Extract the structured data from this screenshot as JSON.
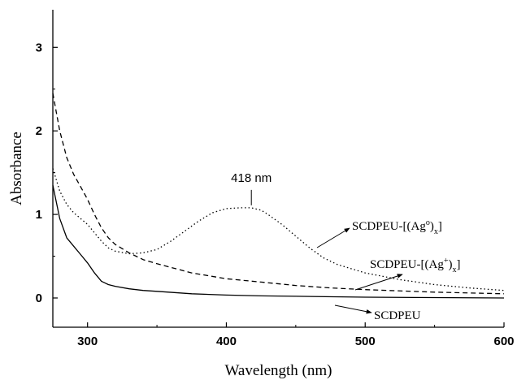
{
  "chart_data": {
    "type": "line",
    "title": "",
    "xlabel": "Wavelength (nm)",
    "ylabel": "Absorbance",
    "xlim": [
      275,
      600
    ],
    "ylim": [
      -0.35,
      3.45
    ],
    "xticks": [
      300,
      400,
      500,
      600
    ],
    "yticks": [
      0,
      1,
      2,
      3
    ],
    "grid": false,
    "legend": "none",
    "series": [
      {
        "name": "SCDPEU",
        "style": "solid",
        "x": [
          275,
          280,
          285,
          290,
          295,
          300,
          305,
          310,
          315,
          320,
          330,
          340,
          350,
          375,
          400,
          425,
          450,
          500,
          550,
          600
        ],
        "y": [
          1.35,
          0.95,
          0.72,
          0.62,
          0.52,
          0.42,
          0.3,
          0.2,
          0.16,
          0.14,
          0.11,
          0.09,
          0.08,
          0.05,
          0.035,
          0.025,
          0.02,
          0.01,
          0.005,
          0.0
        ]
      },
      {
        "name": "SCDPEU-[(Ag+)x]",
        "label_parts": [
          "SCDPEU-[(Ag",
          "+",
          ")",
          "x",
          "]"
        ],
        "style": "dashed",
        "x": [
          275,
          280,
          285,
          290,
          295,
          300,
          305,
          310,
          315,
          320,
          330,
          340,
          350,
          375,
          400,
          425,
          450,
          475,
          500,
          550,
          600
        ],
        "y": [
          2.45,
          2.0,
          1.68,
          1.48,
          1.33,
          1.18,
          1.0,
          0.84,
          0.72,
          0.64,
          0.54,
          0.46,
          0.41,
          0.3,
          0.23,
          0.19,
          0.15,
          0.12,
          0.1,
          0.07,
          0.05
        ]
      },
      {
        "name": "SCDPEU-[(Ago)x]",
        "label_parts": [
          "SCDPEU-[(Ag",
          "o",
          ")",
          "x",
          "]"
        ],
        "style": "dotted",
        "x": [
          275,
          280,
          285,
          290,
          295,
          300,
          305,
          310,
          315,
          320,
          330,
          340,
          350,
          360,
          370,
          380,
          390,
          400,
          410,
          418,
          425,
          430,
          440,
          450,
          460,
          470,
          480,
          500,
          525,
          550,
          575,
          600
        ],
        "y": [
          1.55,
          1.28,
          1.12,
          1.02,
          0.95,
          0.88,
          0.78,
          0.68,
          0.6,
          0.56,
          0.53,
          0.54,
          0.58,
          0.68,
          0.8,
          0.92,
          1.02,
          1.07,
          1.08,
          1.08,
          1.05,
          1.0,
          0.88,
          0.74,
          0.6,
          0.48,
          0.4,
          0.3,
          0.22,
          0.16,
          0.12,
          0.09
        ]
      }
    ],
    "annotations": [
      {
        "text": "418 nm",
        "x": 418,
        "y": 1.08
      }
    ]
  }
}
